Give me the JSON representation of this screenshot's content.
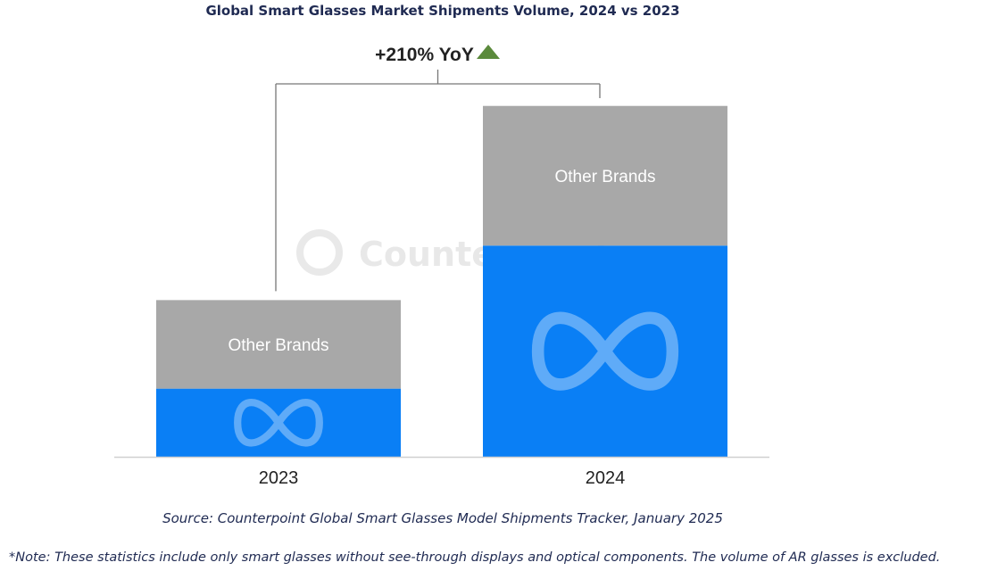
{
  "chart_data": {
    "type": "bar",
    "stacked": true,
    "title": "Global Smart Glasses Market Shipments Volume, 2024 vs 2023",
    "categories": [
      "2023",
      "2024"
    ],
    "series": [
      {
        "name": "Meta",
        "values": [
          20,
          62
        ],
        "color": "#0a7ff5",
        "icon": "meta-logo-icon"
      },
      {
        "name": "Other Brands",
        "values": [
          26,
          41
        ],
        "color": "#a8a8a8"
      }
    ],
    "annotation": "+210% YoY",
    "ylim": [
      0,
      110
    ],
    "grid": false,
    "legend": "none"
  },
  "watermark": "Counterpoint",
  "source": "Source: Counterpoint Global Smart Glasses Model Shipments Tracker, January 2025",
  "note": "*Note: These statistics include only smart glasses without see-through displays and optical components. The volume of AR glasses is excluded."
}
